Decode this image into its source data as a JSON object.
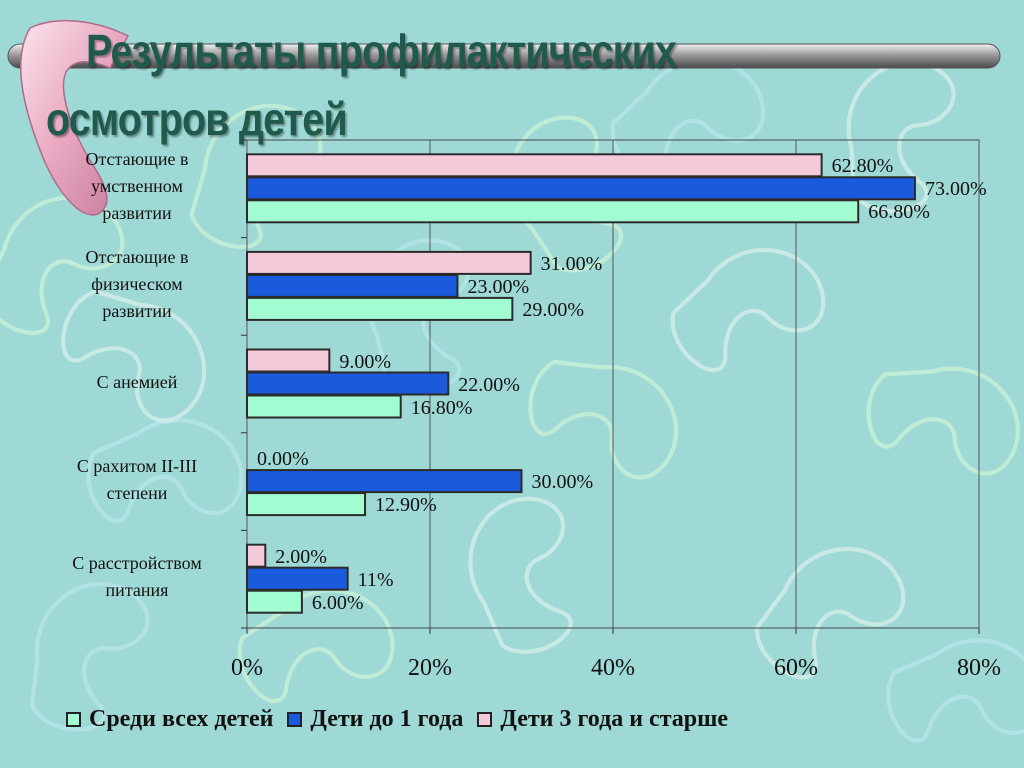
{
  "title": {
    "line1": "Результаты профилактических",
    "line2": "осмотров детей"
  },
  "colors": {
    "background": "#9fd9d6",
    "series_all": "#a2fcd2",
    "series_under1": "#1a5adc",
    "series_3plus": "#f4cadb",
    "title": "#1f5a4c"
  },
  "chart_data": {
    "type": "bar",
    "orientation": "horizontal",
    "categories": [
      [
        "Отстающие в",
        "умственном",
        "развитии"
      ],
      [
        "Отстающие в",
        "физическом",
        "развитии"
      ],
      [
        "С анемией"
      ],
      [
        "С рахитом II-III",
        "степени"
      ],
      [
        "С расстройством",
        "питания"
      ]
    ],
    "series": [
      {
        "name": "Дети 3 года и старше",
        "color": "#f4cadb",
        "values": [
          62.8,
          31.0,
          9.0,
          0.0,
          2.0
        ],
        "labels": [
          "62.80%",
          "31.00%",
          "9.00%",
          "0.00%",
          "2.00%"
        ]
      },
      {
        "name": "Дети до 1 года",
        "color": "#1a5adc",
        "values": [
          73.0,
          23.0,
          22.0,
          30.0,
          11.0
        ],
        "labels": [
          "73.00%",
          "23.00%",
          "22.00%",
          "30.00%",
          "11%"
        ]
      },
      {
        "name": "Среди всех детей",
        "color": "#a2fcd2",
        "values": [
          66.8,
          29.0,
          16.8,
          12.9,
          6.0
        ],
        "labels": [
          "66.80%",
          "29.00%",
          "16.80%",
          "12.90%",
          "6.00%"
        ]
      }
    ],
    "xlim": [
      0,
      80
    ],
    "xticks": [
      0,
      20,
      40,
      60,
      80
    ],
    "xtick_labels": [
      "0%",
      "20%",
      "40%",
      "60%",
      "80%"
    ],
    "grid": true,
    "legend_position": "bottom",
    "legend": [
      {
        "name": "Среди всех детей",
        "color": "#a2fcd2"
      },
      {
        "name": "Дети до 1 года",
        "color": "#1a5adc"
      },
      {
        "name": "Дети 3 года и старше",
        "color": "#f4cadb"
      }
    ]
  }
}
